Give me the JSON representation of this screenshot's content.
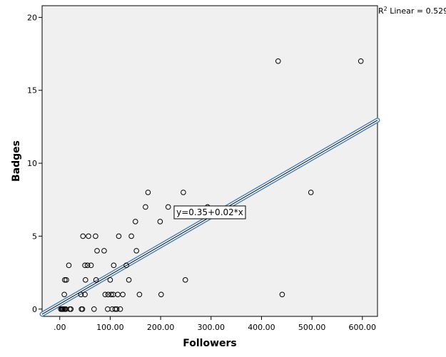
{
  "chart_data": {
    "type": "scatter",
    "xlabel": "Followers",
    "ylabel": "Badges",
    "xlim": [
      -35,
      630
    ],
    "ylim": [
      -0.5,
      20.8
    ],
    "x_ticks": [
      0,
      100,
      200,
      300,
      400,
      500,
      600
    ],
    "x_tick_labels": [
      ".00",
      "100.00",
      "200.00",
      "300.00",
      "400.00",
      "500.00",
      "600.00"
    ],
    "y_ticks": [
      0,
      5,
      10,
      15,
      20
    ],
    "y_tick_labels": [
      "0",
      "5",
      "10",
      "15",
      "20"
    ],
    "grid": false,
    "background_color": "#f0f0f0",
    "fit_line_color": "#4a86c5",
    "r2_label_prefix": "R",
    "r2_label_sup": "2",
    "r2_label_rest": " Linear = 0.529",
    "equation_label": "y=0.35+0.02*x",
    "fit": {
      "intercept": 0.35,
      "slope": 0.02
    },
    "points": [
      [
        2,
        0
      ],
      [
        4,
        0
      ],
      [
        5,
        0
      ],
      [
        6,
        0
      ],
      [
        8,
        0
      ],
      [
        10,
        0
      ],
      [
        12,
        0
      ],
      [
        20,
        0
      ],
      [
        22,
        0
      ],
      [
        9,
        1
      ],
      [
        10,
        2
      ],
      [
        13,
        2
      ],
      [
        18,
        3
      ],
      [
        43,
        0
      ],
      [
        45,
        0
      ],
      [
        42,
        1
      ],
      [
        46,
        5
      ],
      [
        50,
        1
      ],
      [
        51,
        2
      ],
      [
        50,
        3
      ],
      [
        55,
        3
      ],
      [
        57,
        5
      ],
      [
        62,
        3
      ],
      [
        68,
        0
      ],
      [
        72,
        2
      ],
      [
        71,
        5
      ],
      [
        74,
        4
      ],
      [
        88,
        4
      ],
      [
        90,
        1
      ],
      [
        95,
        0
      ],
      [
        96,
        1
      ],
      [
        100,
        2
      ],
      [
        102,
        1
      ],
      [
        104,
        0
      ],
      [
        106,
        1
      ],
      [
        107,
        3
      ],
      [
        110,
        0
      ],
      [
        113,
        0
      ],
      [
        115,
        1
      ],
      [
        117,
        5
      ],
      [
        120,
        0
      ],
      [
        125,
        1
      ],
      [
        132,
        3
      ],
      [
        137,
        2
      ],
      [
        142,
        5
      ],
      [
        150,
        6
      ],
      [
        152,
        4
      ],
      [
        158,
        1
      ],
      [
        170,
        7
      ],
      [
        175,
        8
      ],
      [
        199,
        6
      ],
      [
        201,
        1
      ],
      [
        215,
        7
      ],
      [
        245,
        8
      ],
      [
        249,
        2
      ],
      [
        293,
        7
      ],
      [
        433,
        17
      ],
      [
        441,
        1
      ],
      [
        498,
        8
      ],
      [
        597,
        17
      ]
    ]
  }
}
